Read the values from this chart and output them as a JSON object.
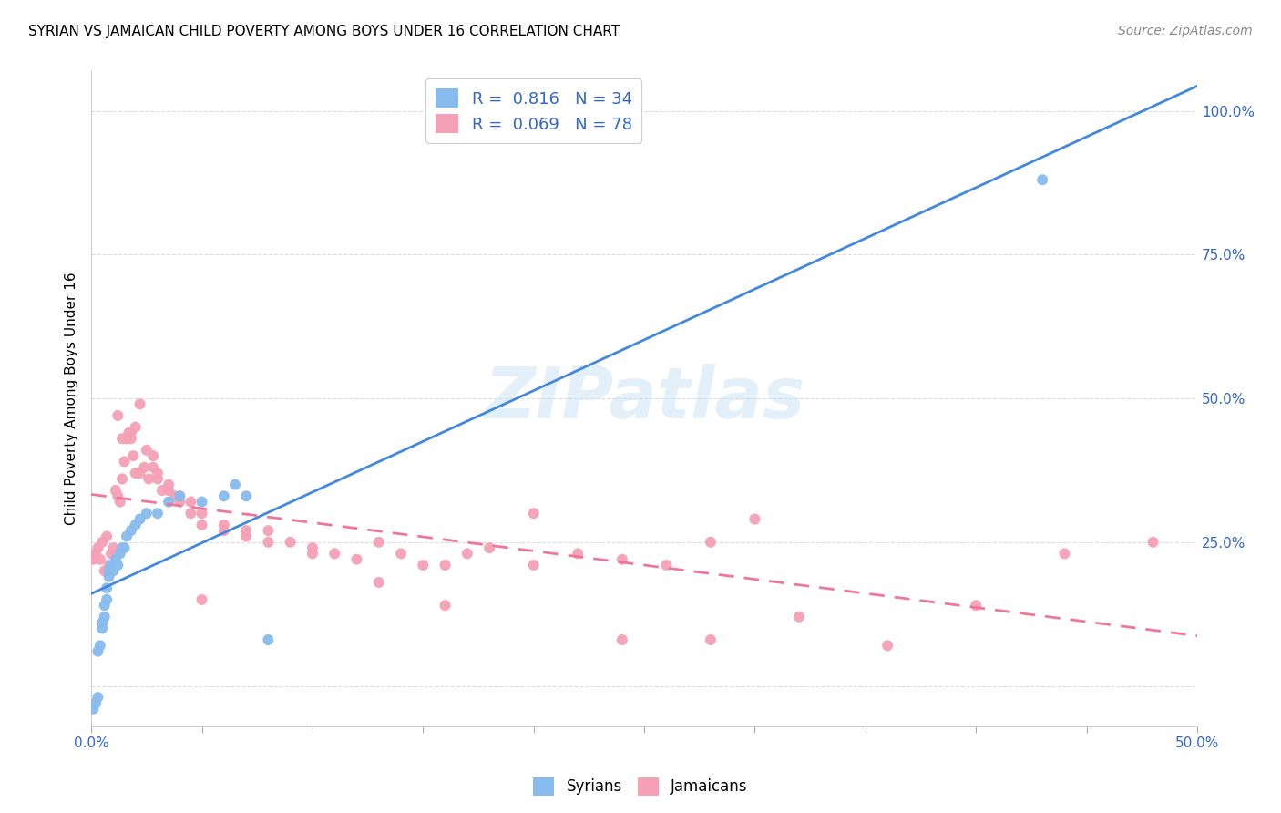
{
  "title": "SYRIAN VS JAMAICAN CHILD POVERTY AMONG BOYS UNDER 16 CORRELATION CHART",
  "source": "Source: ZipAtlas.com",
  "ylabel": "Child Poverty Among Boys Under 16",
  "xlim": [
    0.0,
    0.5
  ],
  "ylim": [
    -0.07,
    1.07
  ],
  "ytick_vals": [
    0.0,
    0.25,
    0.5,
    0.75,
    1.0
  ],
  "ytick_labels": [
    "",
    "25.0%",
    "50.0%",
    "75.0%",
    "100.0%"
  ],
  "xtick_vals": [
    0.0,
    0.05,
    0.1,
    0.15,
    0.2,
    0.25,
    0.3,
    0.35,
    0.4,
    0.45,
    0.5
  ],
  "xtick_labels": [
    "0.0%",
    "",
    "",
    "",
    "",
    "",
    "",
    "",
    "",
    "",
    "50.0%"
  ],
  "syrian_color": "#88bbee",
  "jamaican_color": "#f5a0b5",
  "syrian_line_color": "#4488dd",
  "jamaican_line_color": "#ee7799",
  "legend_text_color": "#3366cc",
  "watermark": "ZIPatlas",
  "syrian_R": 0.816,
  "syrian_N": 34,
  "jamaican_R": 0.069,
  "jamaican_N": 78,
  "syrian_x": [
    0.001,
    0.002,
    0.003,
    0.003,
    0.004,
    0.005,
    0.005,
    0.006,
    0.006,
    0.007,
    0.007,
    0.008,
    0.008,
    0.009,
    0.01,
    0.011,
    0.012,
    0.013,
    0.014,
    0.015,
    0.016,
    0.018,
    0.02,
    0.022,
    0.025,
    0.03,
    0.035,
    0.04,
    0.05,
    0.06,
    0.065,
    0.07,
    0.08,
    0.43
  ],
  "syrian_y": [
    -0.04,
    -0.03,
    -0.02,
    0.06,
    0.07,
    0.1,
    0.11,
    0.12,
    0.14,
    0.15,
    0.17,
    0.19,
    0.2,
    0.21,
    0.2,
    0.22,
    0.21,
    0.23,
    0.24,
    0.24,
    0.26,
    0.27,
    0.28,
    0.29,
    0.3,
    0.3,
    0.32,
    0.33,
    0.32,
    0.33,
    0.35,
    0.33,
    0.08,
    0.88
  ],
  "jamaican_x": [
    0.001,
    0.002,
    0.003,
    0.004,
    0.005,
    0.006,
    0.007,
    0.008,
    0.009,
    0.01,
    0.011,
    0.012,
    0.013,
    0.014,
    0.015,
    0.016,
    0.017,
    0.018,
    0.019,
    0.02,
    0.022,
    0.024,
    0.026,
    0.028,
    0.03,
    0.032,
    0.035,
    0.038,
    0.04,
    0.045,
    0.05,
    0.06,
    0.07,
    0.08,
    0.09,
    0.1,
    0.11,
    0.12,
    0.13,
    0.14,
    0.15,
    0.16,
    0.17,
    0.18,
    0.2,
    0.22,
    0.24,
    0.26,
    0.28,
    0.3,
    0.012,
    0.014,
    0.016,
    0.018,
    0.02,
    0.022,
    0.025,
    0.028,
    0.03,
    0.035,
    0.04,
    0.045,
    0.05,
    0.06,
    0.07,
    0.08,
    0.1,
    0.13,
    0.16,
    0.2,
    0.24,
    0.28,
    0.32,
    0.36,
    0.4,
    0.44,
    0.48,
    0.05
  ],
  "jamaican_y": [
    0.22,
    0.23,
    0.24,
    0.22,
    0.25,
    0.2,
    0.26,
    0.21,
    0.23,
    0.24,
    0.34,
    0.33,
    0.32,
    0.36,
    0.39,
    0.43,
    0.44,
    0.43,
    0.4,
    0.37,
    0.37,
    0.38,
    0.36,
    0.4,
    0.37,
    0.34,
    0.35,
    0.33,
    0.33,
    0.32,
    0.3,
    0.28,
    0.27,
    0.27,
    0.25,
    0.24,
    0.23,
    0.22,
    0.25,
    0.23,
    0.21,
    0.21,
    0.23,
    0.24,
    0.21,
    0.23,
    0.22,
    0.21,
    0.25,
    0.29,
    0.47,
    0.43,
    0.43,
    0.44,
    0.45,
    0.49,
    0.41,
    0.38,
    0.36,
    0.34,
    0.32,
    0.3,
    0.28,
    0.27,
    0.26,
    0.25,
    0.23,
    0.18,
    0.14,
    0.3,
    0.08,
    0.08,
    0.12,
    0.07,
    0.14,
    0.23,
    0.25,
    0.15
  ],
  "background_color": "#ffffff",
  "grid_color": "#dddddd"
}
